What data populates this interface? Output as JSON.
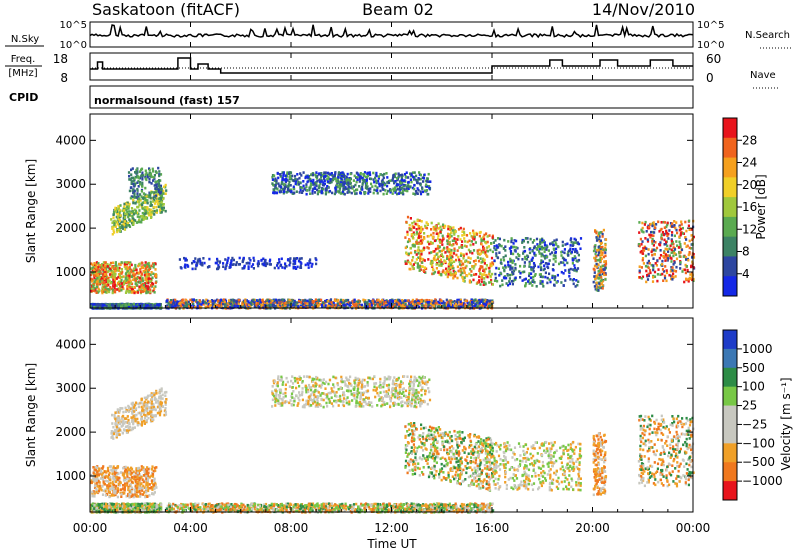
{
  "header": {
    "station": "Saskatoon (fitACF)",
    "beam": "Beam 02",
    "date": "14/Nov/2010"
  },
  "noise_panel": {
    "left_label": "N.Sky",
    "right_label": "N.Search",
    "left_ticks": [
      "10^5",
      "10^0"
    ],
    "right_ticks": [
      "10^5",
      "10^0"
    ]
  },
  "freq_panel": {
    "left_label_line1": "Freq.",
    "left_label_line2": "[MHz]",
    "left_ticks": [
      "18",
      "8"
    ],
    "right_label": "Nave",
    "right_ticks": [
      "60",
      "0"
    ]
  },
  "cpid_panel": {
    "label": "CPID",
    "program": "normalsound (fast) 157"
  },
  "power_colorbar": {
    "label": "Power [dB]",
    "ticks": [
      "28",
      "24",
      "20",
      "16",
      "12",
      "8",
      "4"
    ],
    "colors": [
      "#e8141c",
      "#f0641e",
      "#f5a01e",
      "#f0cf28",
      "#a0c83c",
      "#5aaa50",
      "#3c8264",
      "#2d46a0",
      "#1428e6"
    ]
  },
  "velocity_colorbar": {
    "label": "Velocity [m s⁻¹]",
    "ticks": [
      "1000",
      "500",
      "100",
      "25",
      "−25",
      "−100",
      "−500",
      "−1000"
    ],
    "colors": [
      "#1e3cc8",
      "#3c78b4",
      "#2d8c46",
      "#78c846",
      "#c8c8c0",
      "#c8c8c0",
      "#f0a028",
      "#f0781e",
      "#e8141c"
    ]
  },
  "chart_data": [
    {
      "type": "heatmap",
      "title": "",
      "ylabel": "Slant Range [km]",
      "xlabel": "",
      "x_range": [
        "00:00",
        "24:00"
      ],
      "ylim": [
        180,
        4600
      ],
      "y_ticks": [
        "4000",
        "3000",
        "2000",
        "1000"
      ],
      "colorbar_label": "Power [dB]",
      "colorbar_ticks": [
        28,
        24,
        20,
        16,
        12,
        8,
        4
      ]
    },
    {
      "type": "heatmap",
      "title": "",
      "ylabel": "Slant Range [km]",
      "xlabel": "Time UT",
      "x_ticks": [
        "00:00",
        "04:00",
        "08:00",
        "12:00",
        "16:00",
        "20:00",
        "00:00"
      ],
      "x_range": [
        "00:00",
        "24:00"
      ],
      "ylim": [
        180,
        4600
      ],
      "y_ticks": [
        "4000",
        "3000",
        "2000",
        "1000"
      ],
      "colorbar_label": "Velocity [m s⁻¹]",
      "colorbar_ticks": [
        1000,
        500,
        100,
        25,
        -25,
        -100,
        -500,
        -1000
      ]
    }
  ]
}
